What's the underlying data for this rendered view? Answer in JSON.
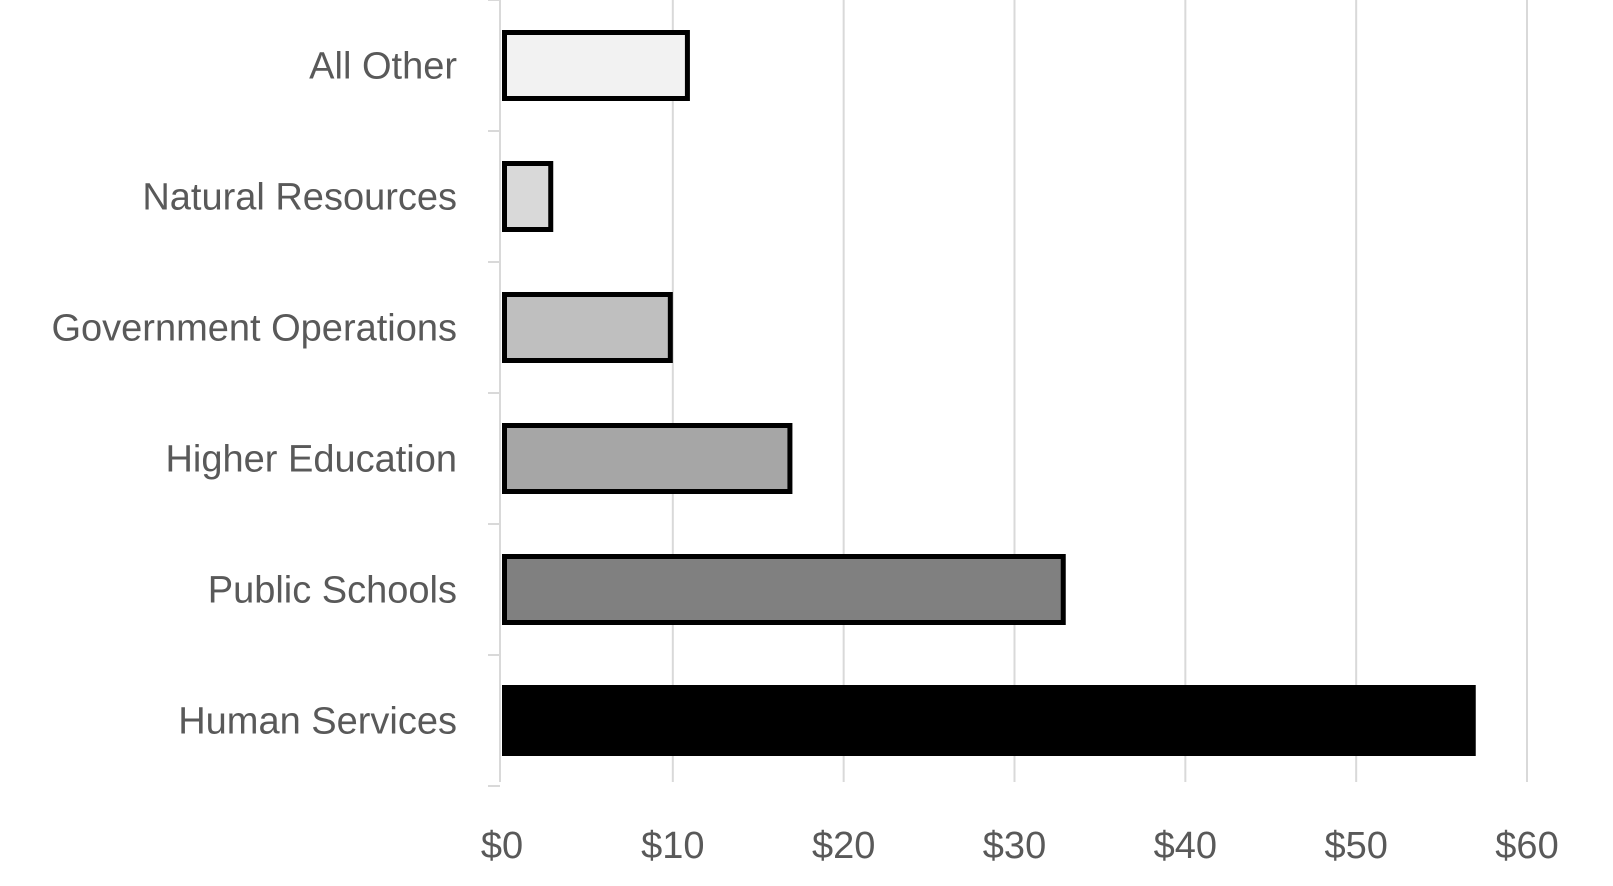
{
  "chart_data": {
    "type": "bar",
    "orientation": "horizontal",
    "categories": [
      "All Other",
      "Natural Resources",
      "Government Operations",
      "Higher Education",
      "Public Schools",
      "Human Services"
    ],
    "values": [
      11,
      3,
      10,
      17,
      33,
      57
    ],
    "bar_colors": [
      "#f2f2f2",
      "#d9d9d9",
      "#bfbfbf",
      "#a6a6a6",
      "#808080",
      "#000000"
    ],
    "xlim": [
      0,
      60
    ],
    "xticks": [
      0,
      10,
      20,
      30,
      40,
      50,
      60
    ],
    "xtick_labels": [
      "$0",
      "$10",
      "$20",
      "$30",
      "$40",
      "$50",
      "$60"
    ],
    "grid": "vertical",
    "title": "",
    "xlabel": "",
    "ylabel": ""
  }
}
